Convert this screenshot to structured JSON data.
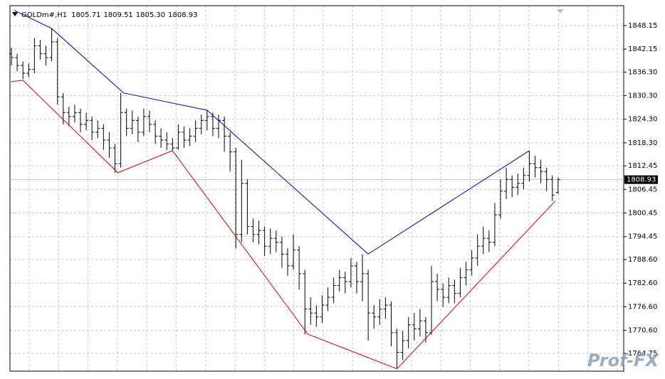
{
  "chart_data": {
    "type": "ohlc",
    "header": {
      "symbol": "GOLDm#,H1",
      "open": "1805.71",
      "high": "1809.51",
      "low": "1805.30",
      "close": "1808.93"
    },
    "watermark": "Prof-FX",
    "color": "#000000",
    "grid": true,
    "xlim": [
      -0.25,
      106.4
    ],
    "ylim": [
      1760.2,
      1853.2
    ],
    "yticks": [
      1848.15,
      1842.15,
      {
        "value": 1836.3,
        "label": "1836.30"
      },
      {
        "value": 1830.3,
        "label": "1830.30"
      },
      {
        "value": 1824.3,
        "label": "1824.30"
      },
      {
        "value": 1818.3,
        "label": "1818.30"
      },
      1812.45,
      1806.45,
      1800.45,
      1794.45,
      {
        "value": 1788.6,
        "label": "1788.60"
      },
      {
        "value": 1782.6,
        "label": "1782.60"
      },
      {
        "value": 1776.6,
        "label": "1776.60"
      },
      {
        "value": 1770.6,
        "label": "1770.60"
      },
      1764.75
    ],
    "open": [
      1841,
      1840,
      1838,
      1836,
      1837,
      1843,
      1841,
      1840,
      1844,
      1830,
      1826,
      1825,
      1826,
      1823,
      1824,
      1821,
      1822,
      1819,
      1817,
      1813,
      1826,
      1822,
      1824,
      1821,
      1825,
      1823,
      1820,
      1819,
      1818,
      1817,
      1821,
      1819,
      1820,
      1822,
      1824,
      1825,
      1822,
      1824,
      1820,
      1816,
      1795,
      1808,
      1797,
      1795,
      1796,
      1792,
      1794,
      1793,
      1790,
      1787,
      1791,
      1785,
      1776,
      1775,
      1774,
      1777,
      1779,
      1782,
      1784,
      1783,
      1787,
      1783,
      1785,
      1775,
      1774,
      1776,
      1777,
      1770,
      1765,
      1768,
      1772,
      1771,
      1773,
      1770,
      1783,
      1781,
      1779,
      1782,
      1780,
      1784,
      1786,
      1789,
      1792,
      1794,
      1793,
      1800,
      1806,
      1809,
      1807,
      1808,
      1810,
      1813,
      1812,
      1811,
      1809,
      1805.71
    ],
    "high": [
      1842.5,
      1841,
      1839,
      1838.5,
      1845,
      1844.5,
      1843,
      1847.4,
      1845,
      1831,
      1827.5,
      1828,
      1827,
      1826,
      1825,
      1824,
      1823,
      1821,
      1818,
      1831,
      1827,
      1826.5,
      1825,
      1827,
      1826.5,
      1824,
      1822,
      1821,
      1819.5,
      1823,
      1822.5,
      1822,
      1824,
      1825.5,
      1826.6,
      1826,
      1825.5,
      1825,
      1821,
      1817,
      1814,
      1809,
      1799,
      1798.5,
      1797,
      1796.5,
      1796,
      1794.5,
      1791.5,
      1795,
      1792,
      1786,
      1779,
      1777,
      1779.5,
      1781.5,
      1784,
      1786,
      1785.5,
      1789,
      1788,
      1790,
      1786,
      1777,
      1778.5,
      1779,
      1778,
      1771,
      1770.5,
      1774,
      1775,
      1776,
      1774,
      1787,
      1785,
      1782.5,
      1784,
      1783.5,
      1786.5,
      1788,
      1791,
      1795,
      1797,
      1796,
      1803,
      1809,
      1812,
      1810,
      1810.5,
      1812,
      1816.3,
      1815,
      1814,
      1812,
      1810,
      1809.51
    ],
    "low": [
      1838,
      1836.5,
      1834.5,
      1835,
      1836,
      1839.5,
      1838,
      1839,
      1828,
      1823,
      1822.5,
      1823.5,
      1821,
      1821.5,
      1819,
      1819.5,
      1816.5,
      1814.5,
      1810.7,
      1812,
      1820,
      1820.5,
      1818.5,
      1820,
      1821,
      1818,
      1817,
      1816.5,
      1816.3,
      1816.5,
      1817,
      1817.5,
      1818.5,
      1820.5,
      1821.5,
      1820,
      1819.5,
      1816,
      1811,
      1791.4,
      1793,
      1795,
      1793,
      1792.5,
      1789.5,
      1790,
      1790.5,
      1786.5,
      1784.5,
      1786,
      1781,
      1769.6,
      1772,
      1771.5,
      1772.5,
      1775.5,
      1777.5,
      1780.5,
      1780,
      1781.5,
      1780,
      1778,
      1768,
      1771,
      1772,
      1773.5,
      1766.5,
      1760.8,
      1763,
      1766,
      1768,
      1769,
      1767.5,
      1769.5,
      1778,
      1776.5,
      1777.5,
      1777.5,
      1779,
      1782,
      1784.5,
      1787,
      1790,
      1790.5,
      1792,
      1799,
      1804,
      1804.5,
      1805,
      1806.5,
      1808.5,
      1809.5,
      1808,
      1806,
      1803.5,
      1805.3
    ],
    "close": [
      1840,
      1838,
      1836,
      1837,
      1843,
      1841,
      1840,
      1844,
      1830,
      1826,
      1825,
      1826,
      1823,
      1824,
      1821,
      1822,
      1819,
      1817,
      1813,
      1826,
      1822,
      1824,
      1821,
      1825,
      1823,
      1820,
      1819,
      1818,
      1817,
      1821,
      1819,
      1820,
      1822,
      1824,
      1825,
      1822,
      1824,
      1820,
      1816,
      1795,
      1808,
      1797,
      1795,
      1796,
      1792,
      1794,
      1793,
      1790,
      1787,
      1791,
      1785,
      1776,
      1775,
      1774,
      1777,
      1779,
      1782,
      1784,
      1783,
      1787,
      1783,
      1785,
      1775,
      1774,
      1776,
      1777,
      1770,
      1765,
      1768,
      1772,
      1771,
      1773,
      1770,
      1783,
      1781,
      1779,
      1782,
      1780,
      1784,
      1786,
      1789,
      1792,
      1794,
      1793,
      1800,
      1806,
      1809,
      1807,
      1808,
      1810,
      1813,
      1812,
      1811,
      1809,
      1805,
      1808.93
    ],
    "overlays": [
      {
        "color": "#0000cc",
        "x": [
          0.5,
          7,
          19.5,
          34,
          62,
          90
        ],
        "values": [
          1852,
          1847.4,
          1831,
          1826.6,
          1790,
          1816.3
        ]
      },
      {
        "color": "#e00000",
        "x": [
          0,
          2,
          18.5,
          28,
          51.5,
          67,
          94.5
        ],
        "values": [
          1833.9,
          1834.2,
          1810.7,
          1816.3,
          1769.6,
          1760.8,
          1803.5
        ]
      }
    ]
  }
}
